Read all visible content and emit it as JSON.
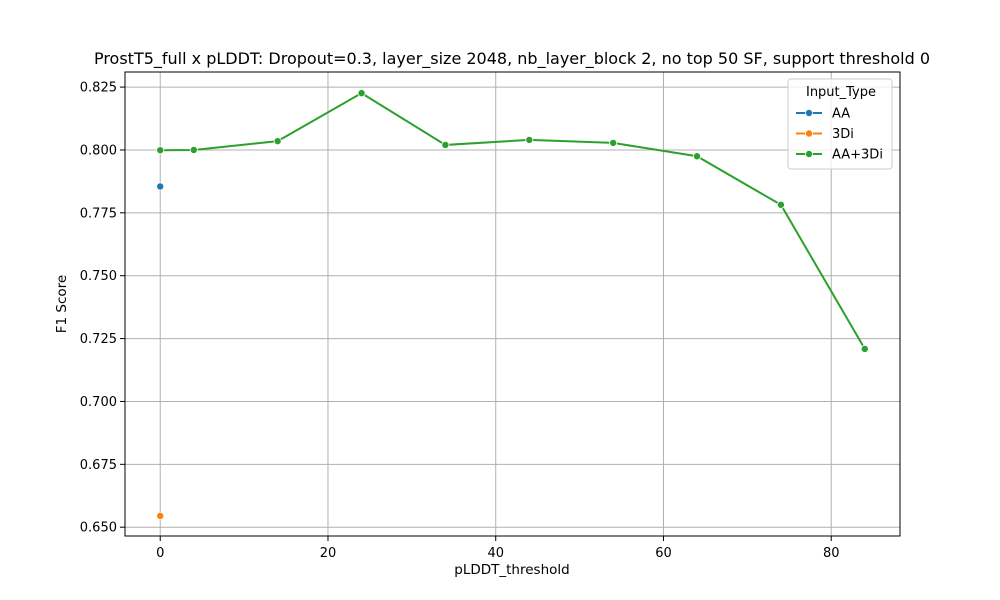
{
  "chart_data": {
    "type": "line",
    "title": "ProstT5_full x pLDDT: Dropout=0.3, layer_size 2048, nb_layer_block 2, no top 50 SF, support threshold 0",
    "xlabel": "pLDDT_threshold",
    "ylabel": "F1 Score",
    "xlim": [
      -4.2,
      88.2
    ],
    "ylim": [
      0.6465,
      0.831
    ],
    "xticks": [
      0,
      20,
      40,
      60,
      80
    ],
    "xtick_labels": [
      "0",
      "20",
      "40",
      "60",
      "80"
    ],
    "yticks": [
      0.65,
      0.675,
      0.7,
      0.725,
      0.75,
      0.775,
      0.8,
      0.825
    ],
    "ytick_labels": [
      "0.650",
      "0.675",
      "0.700",
      "0.725",
      "0.750",
      "0.775",
      "0.800",
      "0.825"
    ],
    "grid": true,
    "legend": {
      "title": "Input_Type",
      "placement": "top-right"
    },
    "series": [
      {
        "name": "AA",
        "color": "#1f77b4",
        "x": [
          0
        ],
        "y": [
          0.7855
        ]
      },
      {
        "name": "3Di",
        "color": "#ff7f0e",
        "x": [
          0
        ],
        "y": [
          0.6545
        ]
      },
      {
        "name": "AA+3Di",
        "color": "#2ca02c",
        "x": [
          0,
          4,
          14,
          24,
          34,
          44,
          54,
          64,
          74,
          84
        ],
        "y": [
          0.7999,
          0.8,
          0.8035,
          0.8226,
          0.802,
          0.804,
          0.8028,
          0.7975,
          0.7782,
          0.7209
        ]
      }
    ]
  }
}
